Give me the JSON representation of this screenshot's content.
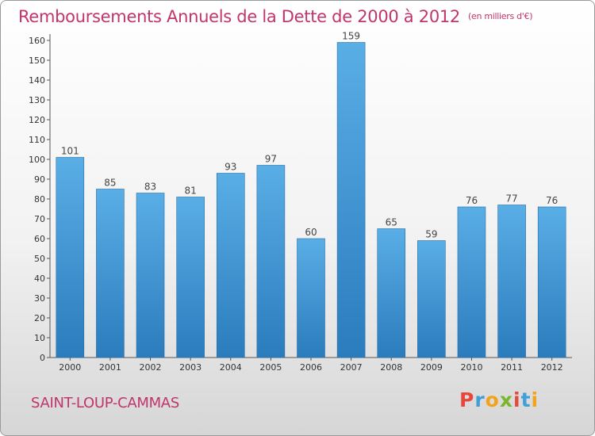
{
  "title": {
    "main": "Remboursements Annuels de la Dette de 2000 à 2012",
    "unit": "(en milliers d'€)"
  },
  "footer": {
    "city": "SAINT-LOUP-CAMMAS",
    "logo_letters": [
      "P",
      "r",
      "o",
      "x",
      "i",
      "t",
      "i"
    ],
    "logo_colors": [
      "#e8473c",
      "#3f9fd8",
      "#f2a31b",
      "#7ab62a",
      "#e8473c",
      "#3f9fd8",
      "#f2a31b"
    ]
  },
  "colors": {
    "bar_top": "#5aaee6",
    "bar_bottom": "#2a7cbc",
    "title": "#c0356b"
  },
  "chart_data": {
    "type": "bar",
    "categories": [
      "2000",
      "2001",
      "2002",
      "2003",
      "2004",
      "2005",
      "2006",
      "2007",
      "2008",
      "2009",
      "2010",
      "2011",
      "2012"
    ],
    "values": [
      101,
      85,
      83,
      81,
      93,
      97,
      60,
      159,
      65,
      59,
      76,
      77,
      76
    ],
    "ylim": [
      0,
      160
    ],
    "yticks": [
      0,
      10,
      20,
      30,
      40,
      50,
      60,
      70,
      80,
      90,
      100,
      110,
      120,
      130,
      140,
      150,
      160
    ],
    "grid": false,
    "data_labels": true
  }
}
